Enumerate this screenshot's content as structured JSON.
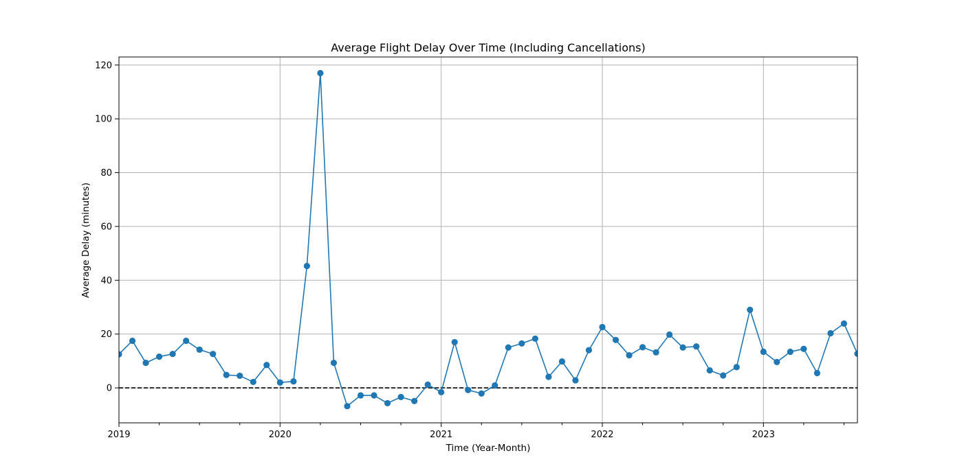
{
  "chart_data": {
    "type": "line",
    "title": "Average Flight Delay Over Time (Including Cancellations)",
    "xlabel": "Time (Year-Month)",
    "ylabel": "Average Delay (minutes)",
    "xlim": [
      "2019-01",
      "2023-08"
    ],
    "ylim": [
      -13,
      123
    ],
    "x_major_ticks": [
      "2019",
      "2020",
      "2021",
      "2022",
      "2023"
    ],
    "y_ticks": [
      0,
      20,
      40,
      60,
      80,
      100,
      120
    ],
    "grid": true,
    "reference_line": {
      "y": 0,
      "style": "dashed",
      "color": "#000000"
    },
    "colors": {
      "series": "#1f77b4",
      "grid": "#b0b0b0"
    },
    "series": [
      {
        "x": [
          "2019-01",
          "2019-02",
          "2019-03",
          "2019-04",
          "2019-05",
          "2019-06",
          "2019-07",
          "2019-08",
          "2019-09",
          "2019-10",
          "2019-11",
          "2019-12",
          "2020-01",
          "2020-02",
          "2020-03",
          "2020-04",
          "2020-05",
          "2020-06",
          "2020-07",
          "2020-08",
          "2020-09",
          "2020-10",
          "2020-11",
          "2020-12",
          "2021-01",
          "2021-02",
          "2021-03",
          "2021-04",
          "2021-05",
          "2021-06",
          "2021-07",
          "2021-08",
          "2021-09",
          "2021-10",
          "2021-11",
          "2021-12",
          "2022-01",
          "2022-02",
          "2022-03",
          "2022-04",
          "2022-05",
          "2022-06",
          "2022-07",
          "2022-08",
          "2022-09",
          "2022-10",
          "2022-11",
          "2022-12",
          "2023-01",
          "2023-02",
          "2023-03",
          "2023-04",
          "2023-05",
          "2023-06",
          "2023-07",
          "2023-08"
        ],
        "values": [
          12.5,
          17.5,
          9.3,
          11.6,
          12.6,
          17.5,
          14.2,
          12.6,
          4.8,
          4.5,
          2.2,
          8.5,
          2.0,
          2.4,
          45.3,
          117.0,
          9.3,
          -6.8,
          -2.8,
          -2.8,
          -5.7,
          -3.4,
          -4.9,
          1.2,
          -1.6,
          17.0,
          -0.8,
          -2.1,
          0.9,
          15.0,
          16.5,
          18.3,
          4.1,
          9.8,
          2.8,
          14.0,
          22.6,
          17.8,
          12.1,
          15.1,
          13.2,
          19.8,
          15.0,
          15.4,
          6.5,
          4.6,
          7.7,
          29.0,
          13.4,
          9.6,
          13.4,
          14.5,
          5.5,
          20.3,
          23.9,
          12.7
        ]
      }
    ]
  }
}
